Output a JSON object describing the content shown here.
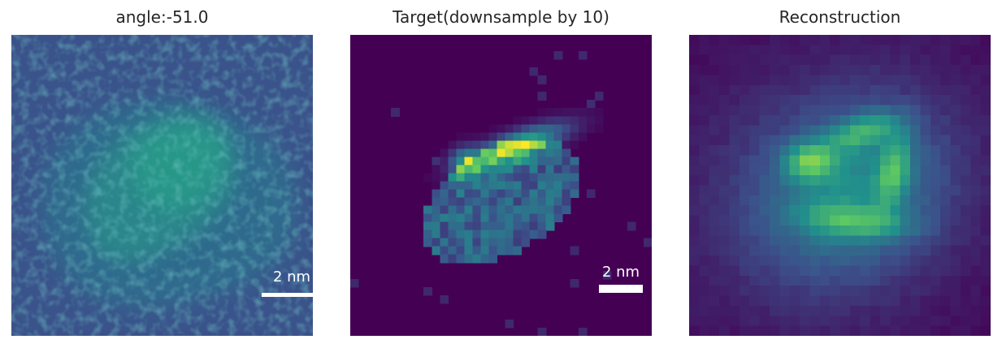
{
  "panels": [
    {
      "title": "angle:-51.0",
      "scalebar": "2 nm"
    },
    {
      "title": "Target(downsample by 10)",
      "scalebar": "2 nm"
    },
    {
      "title": "Reconstruction"
    }
  ],
  "colors": {
    "colormap": "viridis",
    "background_micrograph": "#3b5189",
    "background_target": "#440154",
    "background_reconstruction": "#440154",
    "scalebar": "#ffffff"
  }
}
